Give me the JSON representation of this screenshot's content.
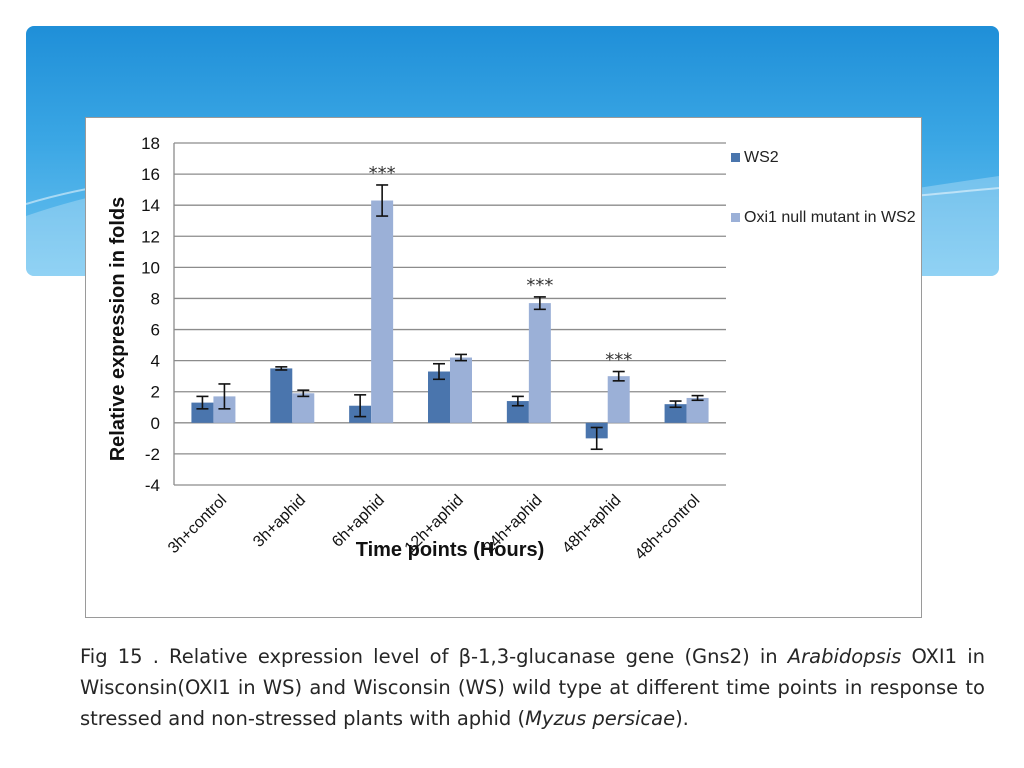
{
  "chart_data": {
    "type": "bar",
    "title": "",
    "xlabel": "Time points (Hours)",
    "ylabel": "Relative expression in folds",
    "ylim": [
      -4,
      18
    ],
    "yticks": [
      18,
      16,
      14,
      12,
      10,
      8,
      6,
      4,
      2,
      0,
      -2,
      -4
    ],
    "grid": true,
    "legend_position": "right",
    "categories": [
      "3h+control",
      "3h+aphid",
      "6h+aphid",
      "12h+aphid",
      "24h+aphid",
      "48h+aphid",
      "48h+control"
    ],
    "series": [
      {
        "name": "WS2",
        "color": "#4a75ad",
        "values": [
          1.3,
          3.5,
          1.1,
          3.3,
          1.4,
          -1.0,
          1.2
        ],
        "errors": [
          0.4,
          0.1,
          0.7,
          0.5,
          0.3,
          0.7,
          0.2
        ]
      },
      {
        "name": "Oxi1 null mutant in WS2",
        "color": "#9bb0d7",
        "values": [
          1.7,
          1.9,
          14.3,
          4.2,
          7.7,
          3.0,
          1.6
        ],
        "errors": [
          0.8,
          0.2,
          1.0,
          0.2,
          0.4,
          0.3,
          0.15
        ]
      }
    ],
    "annotations": [
      {
        "category": "6h+aphid",
        "text": "***"
      },
      {
        "category": "24h+aphid",
        "text": "***"
      },
      {
        "category": "48h+aphid",
        "text": "***"
      }
    ]
  },
  "caption": {
    "prefix": "Fig 15 . Relative expression level of β-1,3-glucanase gene (Gns2) in ",
    "italic1": "Arabidopsis",
    "middle": " OXI1 in Wisconsin(OXI1 in WS) and Wisconsin (WS) wild type at different time points in response to stressed and non-stressed plants with aphid (",
    "italic2": "Myzus persicae",
    "suffix": ")."
  },
  "colors": {
    "banner_top": "#1f8fd8",
    "banner_bottom": "#6cc3f0",
    "grid": "#8c8c8c"
  }
}
